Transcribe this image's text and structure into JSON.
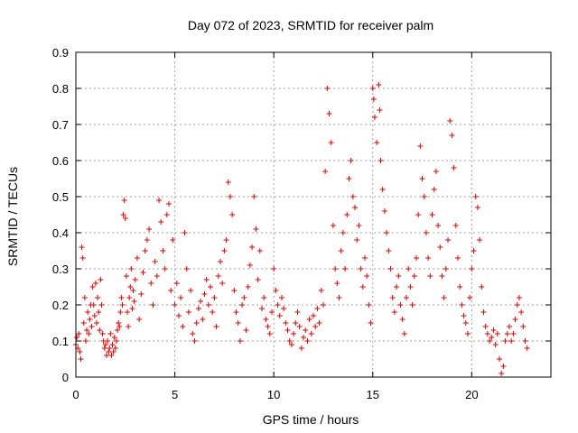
{
  "chart_data": {
    "type": "scatter",
    "title": "Day 072 of 2023, SRMTID for receiver palm",
    "xlabel": "GPS time / hours",
    "ylabel": "SRMTID / TECUs",
    "xlim": [
      0,
      24
    ],
    "ylim": [
      0,
      0.9
    ],
    "xticks": [
      0,
      5,
      10,
      15,
      20
    ],
    "yticks": [
      0,
      0.1,
      0.2,
      0.3,
      0.4,
      0.5,
      0.6,
      0.7,
      0.8,
      0.9
    ],
    "xtick_labels": [
      "0",
      "5",
      "10",
      "15",
      "20"
    ],
    "ytick_labels": [
      "0",
      "0.1",
      "0.2",
      "0.3",
      "0.4",
      "0.5",
      "0.6",
      "0.7",
      "0.8",
      "0.9"
    ],
    "grid": true,
    "marker": "+",
    "series": [
      {
        "name": "SRMTID",
        "color": "#e00000",
        "points": [
          [
            0.0,
            0.09
          ],
          [
            0.05,
            0.11
          ],
          [
            0.1,
            0.08
          ],
          [
            0.15,
            0.12
          ],
          [
            0.2,
            0.07
          ],
          [
            0.25,
            0.05
          ],
          [
            0.3,
            0.36
          ],
          [
            0.35,
            0.33
          ],
          [
            0.4,
            0.15
          ],
          [
            0.45,
            0.22
          ],
          [
            0.5,
            0.1
          ],
          [
            0.55,
            0.13
          ],
          [
            0.6,
            0.18
          ],
          [
            0.65,
            0.12
          ],
          [
            0.7,
            0.16
          ],
          [
            0.75,
            0.2
          ],
          [
            0.8,
            0.14
          ],
          [
            0.85,
            0.25
          ],
          [
            0.9,
            0.2
          ],
          [
            0.95,
            0.17
          ],
          [
            1.0,
            0.26
          ],
          [
            1.05,
            0.15
          ],
          [
            1.1,
            0.22
          ],
          [
            1.15,
            0.18
          ],
          [
            1.2,
            0.13
          ],
          [
            1.25,
            0.27
          ],
          [
            1.3,
            0.2
          ],
          [
            1.35,
            0.12
          ],
          [
            1.4,
            0.1
          ],
          [
            1.45,
            0.08
          ],
          [
            1.5,
            0.09
          ],
          [
            1.55,
            0.06
          ],
          [
            1.6,
            0.1
          ],
          [
            1.65,
            0.07
          ],
          [
            1.7,
            0.08
          ],
          [
            1.75,
            0.12
          ],
          [
            1.8,
            0.06
          ],
          [
            1.85,
            0.09
          ],
          [
            1.9,
            0.07
          ],
          [
            1.95,
            0.11
          ],
          [
            2.0,
            0.08
          ],
          [
            2.05,
            0.1
          ],
          [
            2.1,
            0.13
          ],
          [
            2.15,
            0.15
          ],
          [
            2.2,
            0.14
          ],
          [
            2.25,
            0.18
          ],
          [
            2.3,
            0.22
          ],
          [
            2.35,
            0.2
          ],
          [
            2.4,
            0.45
          ],
          [
            2.45,
            0.49
          ],
          [
            2.5,
            0.44
          ],
          [
            2.55,
            0.28
          ],
          [
            2.6,
            0.18
          ],
          [
            2.65,
            0.14
          ],
          [
            2.7,
            0.22
          ],
          [
            2.75,
            0.25
          ],
          [
            2.8,
            0.3
          ],
          [
            2.85,
            0.19
          ],
          [
            2.9,
            0.24
          ],
          [
            2.95,
            0.21
          ],
          [
            3.0,
            0.27
          ],
          [
            3.1,
            0.33
          ],
          [
            3.2,
            0.16
          ],
          [
            3.3,
            0.23
          ],
          [
            3.4,
            0.29
          ],
          [
            3.5,
            0.35
          ],
          [
            3.6,
            0.38
          ],
          [
            3.7,
            0.41
          ],
          [
            3.8,
            0.26
          ],
          [
            3.9,
            0.2
          ],
          [
            4.0,
            0.32
          ],
          [
            4.1,
            0.28
          ],
          [
            4.2,
            0.49
          ],
          [
            4.3,
            0.43
          ],
          [
            4.4,
            0.35
          ],
          [
            4.5,
            0.3
          ],
          [
            4.6,
            0.45
          ],
          [
            4.7,
            0.48
          ],
          [
            4.8,
            0.24
          ],
          [
            4.9,
            0.38
          ],
          [
            5.0,
            0.2
          ],
          [
            5.1,
            0.26
          ],
          [
            5.2,
            0.17
          ],
          [
            5.3,
            0.22
          ],
          [
            5.4,
            0.14
          ],
          [
            5.5,
            0.4
          ],
          [
            5.6,
            0.3
          ],
          [
            5.7,
            0.18
          ],
          [
            5.8,
            0.24
          ],
          [
            5.9,
            0.12
          ],
          [
            6.0,
            0.1
          ],
          [
            6.1,
            0.15
          ],
          [
            6.2,
            0.19
          ],
          [
            6.3,
            0.21
          ],
          [
            6.4,
            0.16
          ],
          [
            6.5,
            0.23
          ],
          [
            6.6,
            0.27
          ],
          [
            6.7,
            0.2
          ],
          [
            6.8,
            0.25
          ],
          [
            6.9,
            0.18
          ],
          [
            7.0,
            0.22
          ],
          [
            7.1,
            0.14
          ],
          [
            7.2,
            0.28
          ],
          [
            7.3,
            0.32
          ],
          [
            7.4,
            0.26
          ],
          [
            7.5,
            0.35
          ],
          [
            7.6,
            0.38
          ],
          [
            7.7,
            0.54
          ],
          [
            7.8,
            0.5
          ],
          [
            7.9,
            0.45
          ],
          [
            8.0,
            0.24
          ],
          [
            8.1,
            0.18
          ],
          [
            8.2,
            0.15
          ],
          [
            8.3,
            0.1
          ],
          [
            8.4,
            0.2
          ],
          [
            8.5,
            0.22
          ],
          [
            8.6,
            0.13
          ],
          [
            8.7,
            0.25
          ],
          [
            8.8,
            0.31
          ],
          [
            8.9,
            0.36
          ],
          [
            9.0,
            0.5
          ],
          [
            9.1,
            0.41
          ],
          [
            9.2,
            0.27
          ],
          [
            9.3,
            0.35
          ],
          [
            9.4,
            0.19
          ],
          [
            9.5,
            0.22
          ],
          [
            9.6,
            0.16
          ],
          [
            9.7,
            0.14
          ],
          [
            9.8,
            0.12
          ],
          [
            9.9,
            0.18
          ],
          [
            10.0,
            0.3
          ],
          [
            10.1,
            0.24
          ],
          [
            10.2,
            0.2
          ],
          [
            10.3,
            0.17
          ],
          [
            10.4,
            0.22
          ],
          [
            10.5,
            0.19
          ],
          [
            10.6,
            0.15
          ],
          [
            10.7,
            0.13
          ],
          [
            10.8,
            0.1
          ],
          [
            10.9,
            0.09
          ],
          [
            11.0,
            0.12
          ],
          [
            11.1,
            0.15
          ],
          [
            11.2,
            0.18
          ],
          [
            11.3,
            0.14
          ],
          [
            11.4,
            0.08
          ],
          [
            11.5,
            0.11
          ],
          [
            11.6,
            0.13
          ],
          [
            11.7,
            0.1
          ],
          [
            11.8,
            0.16
          ],
          [
            11.9,
            0.12
          ],
          [
            12.0,
            0.17
          ],
          [
            12.1,
            0.14
          ],
          [
            12.2,
            0.19
          ],
          [
            12.3,
            0.15
          ],
          [
            12.4,
            0.24
          ],
          [
            12.5,
            0.2
          ],
          [
            12.6,
            0.57
          ],
          [
            12.7,
            0.8
          ],
          [
            12.8,
            0.73
          ],
          [
            12.9,
            0.65
          ],
          [
            13.0,
            0.42
          ],
          [
            13.1,
            0.3
          ],
          [
            13.2,
            0.26
          ],
          [
            13.3,
            0.22
          ],
          [
            13.4,
            0.35
          ],
          [
            13.5,
            0.4
          ],
          [
            13.6,
            0.3
          ],
          [
            13.7,
            0.45
          ],
          [
            13.8,
            0.55
          ],
          [
            13.9,
            0.6
          ],
          [
            14.0,
            0.5
          ],
          [
            14.1,
            0.47
          ],
          [
            14.2,
            0.38
          ],
          [
            14.3,
            0.42
          ],
          [
            14.4,
            0.3
          ],
          [
            14.5,
            0.25
          ],
          [
            14.6,
            0.33
          ],
          [
            14.7,
            0.28
          ],
          [
            14.8,
            0.2
          ],
          [
            14.9,
            0.15
          ],
          [
            15.0,
            0.8
          ],
          [
            15.05,
            0.77
          ],
          [
            15.1,
            0.72
          ],
          [
            15.2,
            0.65
          ],
          [
            15.3,
            0.81
          ],
          [
            15.35,
            0.74
          ],
          [
            15.4,
            0.6
          ],
          [
            15.5,
            0.52
          ],
          [
            15.6,
            0.46
          ],
          [
            15.7,
            0.4
          ],
          [
            15.8,
            0.35
          ],
          [
            15.9,
            0.3
          ],
          [
            16.0,
            0.22
          ],
          [
            16.1,
            0.18
          ],
          [
            16.2,
            0.25
          ],
          [
            16.3,
            0.28
          ],
          [
            16.4,
            0.2
          ],
          [
            16.5,
            0.16
          ],
          [
            16.6,
            0.12
          ],
          [
            16.7,
            0.22
          ],
          [
            16.8,
            0.3
          ],
          [
            16.9,
            0.25
          ],
          [
            17.0,
            0.2
          ],
          [
            17.1,
            0.28
          ],
          [
            17.2,
            0.33
          ],
          [
            17.3,
            0.45
          ],
          [
            17.4,
            0.64
          ],
          [
            17.5,
            0.55
          ],
          [
            17.6,
            0.5
          ],
          [
            17.7,
            0.4
          ],
          [
            17.8,
            0.33
          ],
          [
            17.9,
            0.28
          ],
          [
            18.0,
            0.45
          ],
          [
            18.1,
            0.52
          ],
          [
            18.2,
            0.57
          ],
          [
            18.3,
            0.42
          ],
          [
            18.4,
            0.36
          ],
          [
            18.5,
            0.28
          ],
          [
            18.6,
            0.22
          ],
          [
            18.7,
            0.3
          ],
          [
            18.8,
            0.38
          ],
          [
            18.9,
            0.71
          ],
          [
            19.0,
            0.67
          ],
          [
            19.1,
            0.58
          ],
          [
            19.2,
            0.42
          ],
          [
            19.3,
            0.33
          ],
          [
            19.4,
            0.25
          ],
          [
            19.5,
            0.2
          ],
          [
            19.6,
            0.17
          ],
          [
            19.7,
            0.15
          ],
          [
            19.8,
            0.12
          ],
          [
            19.9,
            0.22
          ],
          [
            20.0,
            0.3
          ],
          [
            20.1,
            0.35
          ],
          [
            20.2,
            0.5
          ],
          [
            20.3,
            0.47
          ],
          [
            20.4,
            0.38
          ],
          [
            20.5,
            0.25
          ],
          [
            20.6,
            0.18
          ],
          [
            20.7,
            0.14
          ],
          [
            20.8,
            0.12
          ],
          [
            20.9,
            0.1
          ],
          [
            21.0,
            0.11
          ],
          [
            21.1,
            0.13
          ],
          [
            21.2,
            0.09
          ],
          [
            21.3,
            0.12
          ],
          [
            21.4,
            0.05
          ],
          [
            21.5,
            0.01
          ],
          [
            21.6,
            0.03
          ],
          [
            21.7,
            0.1
          ],
          [
            21.8,
            0.12
          ],
          [
            21.9,
            0.14
          ],
          [
            22.0,
            0.1
          ],
          [
            22.1,
            0.12
          ],
          [
            22.2,
            0.16
          ],
          [
            22.3,
            0.2
          ],
          [
            22.4,
            0.22
          ],
          [
            22.5,
            0.18
          ],
          [
            22.6,
            0.14
          ],
          [
            22.7,
            0.1
          ],
          [
            22.8,
            0.08
          ]
        ]
      }
    ]
  }
}
